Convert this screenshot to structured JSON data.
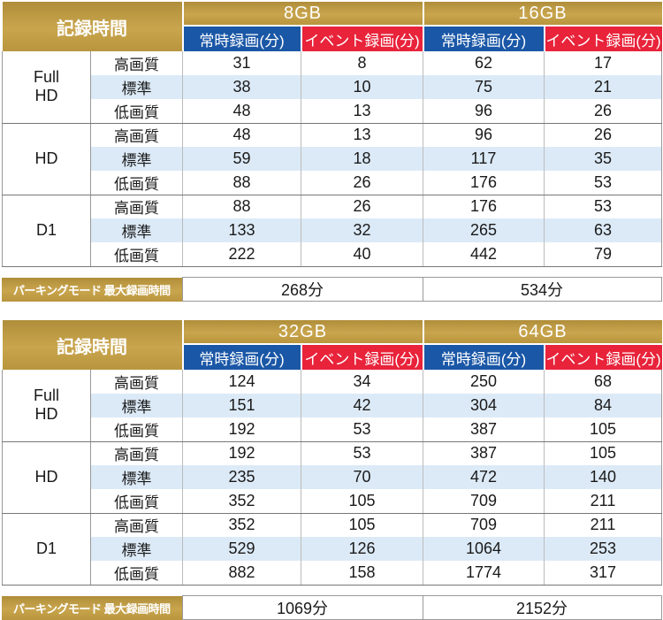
{
  "tables": [
    {
      "title": "記録時間",
      "capacities": [
        "8GB",
        "16GB"
      ],
      "col_normal": "常時録画(分)",
      "col_event": "イベント録画(分)",
      "resolutions": [
        {
          "name": "Full\nHD",
          "rows": [
            {
              "quality": "高画質",
              "vals": [
                "31",
                "8",
                "62",
                "17"
              ]
            },
            {
              "quality": "標準",
              "vals": [
                "38",
                "10",
                "75",
                "21"
              ]
            },
            {
              "quality": "低画質",
              "vals": [
                "48",
                "13",
                "96",
                "26"
              ]
            }
          ]
        },
        {
          "name": "HD",
          "rows": [
            {
              "quality": "高画質",
              "vals": [
                "48",
                "13",
                "96",
                "26"
              ]
            },
            {
              "quality": "標準",
              "vals": [
                "59",
                "18",
                "117",
                "35"
              ]
            },
            {
              "quality": "低画質",
              "vals": [
                "88",
                "26",
                "176",
                "53"
              ]
            }
          ]
        },
        {
          "name": "D1",
          "rows": [
            {
              "quality": "高画質",
              "vals": [
                "88",
                "26",
                "176",
                "53"
              ]
            },
            {
              "quality": "標準",
              "vals": [
                "133",
                "32",
                "265",
                "63"
              ]
            },
            {
              "quality": "低画質",
              "vals": [
                "222",
                "40",
                "442",
                "79"
              ]
            }
          ]
        }
      ],
      "parking_label": "パーキングモード 最大録画時間",
      "parking_values": [
        "268分",
        "534分"
      ]
    },
    {
      "title": "記録時間",
      "capacities": [
        "32GB",
        "64GB"
      ],
      "col_normal": "常時録画(分)",
      "col_event": "イベント録画(分)",
      "resolutions": [
        {
          "name": "Full\nHD",
          "rows": [
            {
              "quality": "高画質",
              "vals": [
                "124",
                "34",
                "250",
                "68"
              ]
            },
            {
              "quality": "標準",
              "vals": [
                "151",
                "42",
                "304",
                "84"
              ]
            },
            {
              "quality": "低画質",
              "vals": [
                "192",
                "53",
                "387",
                "105"
              ]
            }
          ]
        },
        {
          "name": "HD",
          "rows": [
            {
              "quality": "高画質",
              "vals": [
                "192",
                "53",
                "387",
                "105"
              ]
            },
            {
              "quality": "標準",
              "vals": [
                "235",
                "70",
                "472",
                "140"
              ]
            },
            {
              "quality": "低画質",
              "vals": [
                "352",
                "105",
                "709",
                "211"
              ]
            }
          ]
        },
        {
          "name": "D1",
          "rows": [
            {
              "quality": "高画質",
              "vals": [
                "352",
                "105",
                "709",
                "211"
              ]
            },
            {
              "quality": "標準",
              "vals": [
                "529",
                "126",
                "1064",
                "253"
              ]
            },
            {
              "quality": "低画質",
              "vals": [
                "882",
                "158",
                "1774",
                "317"
              ]
            }
          ]
        }
      ],
      "parking_label": "パーキングモード 最大録画時間",
      "parking_values": [
        "1069分",
        "2152分"
      ]
    }
  ]
}
